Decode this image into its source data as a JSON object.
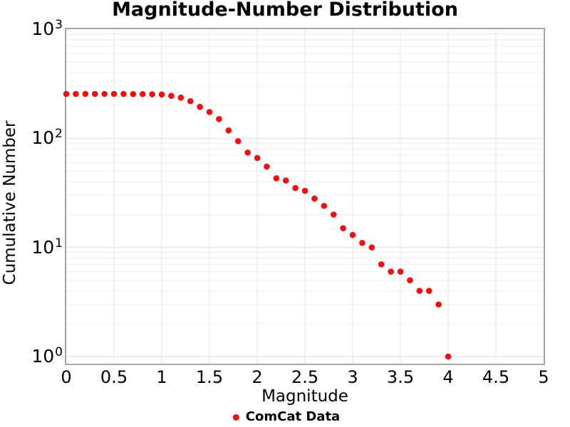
{
  "figure": {
    "title": "Magnitude-Number Distribution"
  },
  "chart_data": {
    "type": "scatter",
    "title": "Magnitude-Number Distribution",
    "xlabel": "Magnitude",
    "ylabel": "Cumulative Number",
    "y_scale": "log",
    "xlim": [
      0,
      5
    ],
    "ylim": [
      1,
      1000
    ],
    "grid": true,
    "legend": {
      "position": "bottom-center",
      "entries": [
        "ComCat Data"
      ]
    },
    "x": [
      0.0,
      0.1,
      0.2,
      0.3,
      0.4,
      0.5,
      0.6,
      0.7,
      0.8,
      0.9,
      1.0,
      1.1,
      1.2,
      1.3,
      1.4,
      1.5,
      1.6,
      1.7,
      1.8,
      1.9,
      2.0,
      2.1,
      2.2,
      2.3,
      2.4,
      2.5,
      2.6,
      2.7,
      2.8,
      2.9,
      3.0,
      3.1,
      3.2,
      3.3,
      3.4,
      3.5,
      3.6,
      3.7,
      3.8,
      3.9,
      4.0
    ],
    "series": [
      {
        "name": "ComCat Data",
        "color": "#ee1111",
        "marker": "circle",
        "values": [
          255,
          255,
          255,
          255,
          255,
          255,
          255,
          254,
          254,
          253,
          252,
          245,
          236,
          219,
          194,
          174,
          150,
          118,
          94,
          74,
          66,
          55,
          43,
          41,
          35,
          33,
          28,
          24,
          20,
          15,
          13,
          11,
          10,
          7,
          6,
          6,
          5,
          4,
          4,
          3,
          1
        ]
      }
    ],
    "xticks": [
      {
        "value": 0,
        "label": "0"
      },
      {
        "value": 0.5,
        "label": "0.5"
      },
      {
        "value": 1,
        "label": "1"
      },
      {
        "value": 1.5,
        "label": "1.5"
      },
      {
        "value": 2,
        "label": "2"
      },
      {
        "value": 2.5,
        "label": "2.5"
      },
      {
        "value": 3,
        "label": "3"
      },
      {
        "value": 3.5,
        "label": "3.5"
      },
      {
        "value": 4,
        "label": "4"
      },
      {
        "value": 4.5,
        "label": "4.5"
      },
      {
        "value": 5,
        "label": "5"
      }
    ],
    "ytick_base": "10",
    "ytick_exponents": [
      3,
      2,
      1,
      0
    ]
  },
  "colors": {
    "marker": "#ee1111",
    "plot_border": "#a5a5a5",
    "grid_major": "#dedede",
    "grid_minor": "#eeeeee",
    "grid_vertical": "#e4e4e4",
    "background": "#ffffff",
    "text": "#000000"
  }
}
